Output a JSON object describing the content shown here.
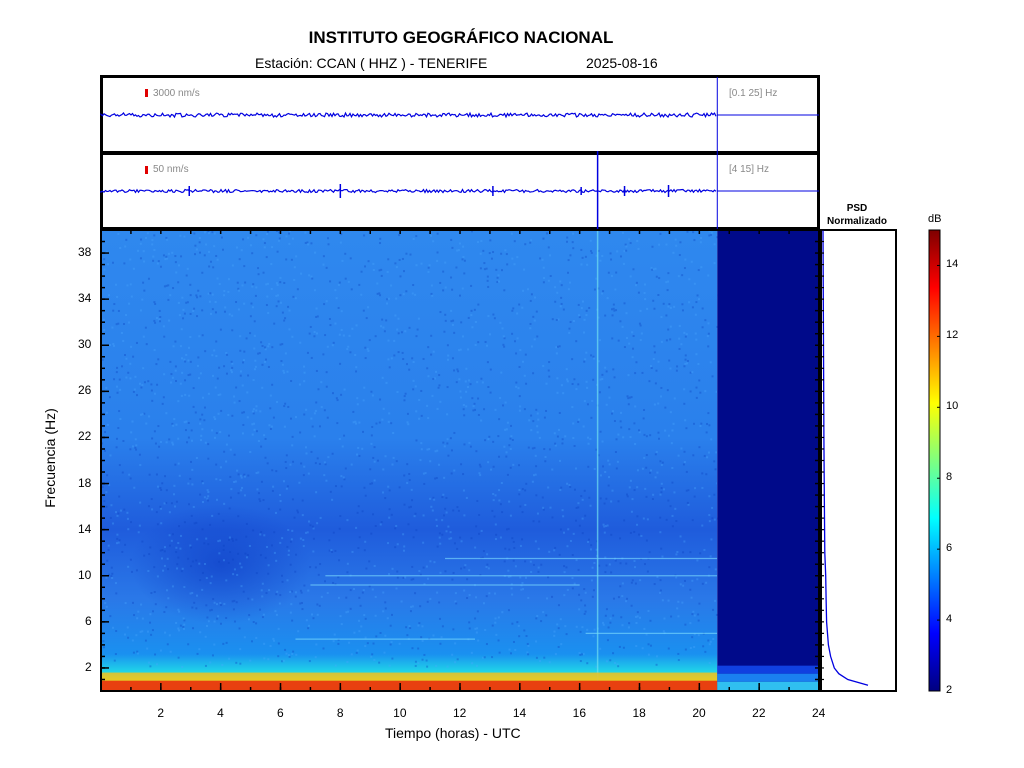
{
  "header": {
    "title": "INSTITUTO GEOGRÁFICO NACIONAL",
    "station": "Estación:  CCAN ( HHZ ) - TENERIFE",
    "date": "2025-08-16"
  },
  "trace_top": {
    "scale": "3000 nm/s",
    "band": "[0.1 25] Hz"
  },
  "trace_bottom": {
    "scale": "50 nm/s",
    "band": "[4 15] Hz"
  },
  "psd": {
    "title_line1": "PSD",
    "title_line2": "Normalizado"
  },
  "colorbar": {
    "unit": "dB",
    "ticks": [
      "2",
      "4",
      "6",
      "8",
      "10",
      "12",
      "14"
    ]
  },
  "chart_data": {
    "type": "heatmap",
    "title": "INSTITUTO GEOGRÁFICO NACIONAL",
    "subtitle": "Estación:  CCAN ( HHZ ) - TENERIFE",
    "xlabel": "Tiempo (horas) - UTC",
    "ylabel": "Frecuencia  (Hz)",
    "xlim": [
      0,
      24
    ],
    "ylim": [
      0,
      40
    ],
    "x_ticks": [
      "2",
      "4",
      "6",
      "8",
      "10",
      "12",
      "14",
      "16",
      "18",
      "20",
      "22",
      "24"
    ],
    "y_ticks": [
      "2",
      "6",
      "10",
      "14",
      "18",
      "22",
      "26",
      "30",
      "34",
      "38"
    ],
    "data_end_hour": 20.6,
    "colorbar_range_db": [
      2,
      15
    ],
    "spike_hour": 16.6,
    "grid": false,
    "psd_normalized": [
      {
        "f": 0.5,
        "v": 1.0
      },
      {
        "f": 1.0,
        "v": 0.55
      },
      {
        "f": 1.5,
        "v": 0.35
      },
      {
        "f": 2.0,
        "v": 0.25
      },
      {
        "f": 3.0,
        "v": 0.17
      },
      {
        "f": 4.0,
        "v": 0.12
      },
      {
        "f": 5.0,
        "v": 0.1
      },
      {
        "f": 6.0,
        "v": 0.08
      },
      {
        "f": 8.0,
        "v": 0.07
      },
      {
        "f": 10.0,
        "v": 0.06
      },
      {
        "f": 12.0,
        "v": 0.04
      },
      {
        "f": 16.0,
        "v": 0.03
      },
      {
        "f": 22.0,
        "v": 0.02
      },
      {
        "f": 30.0,
        "v": 0.01
      },
      {
        "f": 40.0,
        "v": 0.0
      }
    ]
  }
}
